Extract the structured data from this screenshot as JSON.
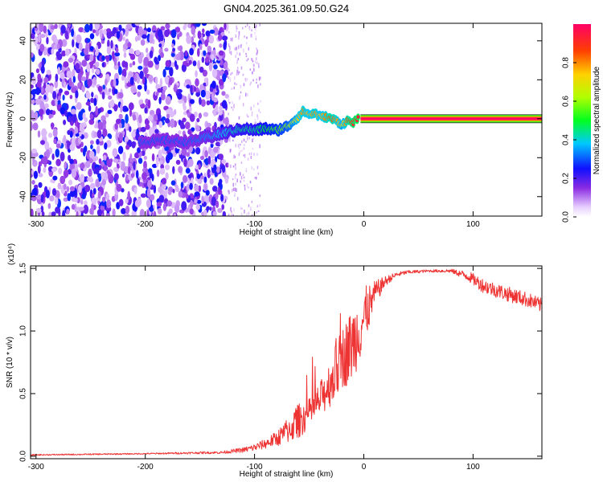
{
  "title": "GN04.2025.361.09.50.G24",
  "colorbar": {
    "label": "Normalized spectral amplitude",
    "range": [
      0,
      1
    ],
    "ticks": [
      0.0,
      0.2,
      0.4,
      0.6,
      0.8
    ],
    "tick_labels": [
      "0.0",
      "0.2",
      "0.4",
      "0.6",
      "0.8"
    ]
  },
  "chart_data": [
    {
      "type": "heatmap",
      "name": "spectrogram",
      "xlabel": "Height of straight line (km)",
      "ylabel": "Frequency (Hz)",
      "xlim": [
        -305,
        163
      ],
      "ylim": [
        -50,
        49
      ],
      "xticks": [
        -300,
        -200,
        -100,
        0,
        100
      ],
      "xtick_labels": [
        "-300",
        "-200",
        "-100",
        "0",
        "100"
      ],
      "yticks": [
        -40,
        -20,
        0,
        20,
        40
      ],
      "ytick_labels": [
        "-40",
        "-20",
        "0",
        "20",
        "40"
      ],
      "noise_region_x": [
        -305,
        -125
      ],
      "ridge": {
        "x": [
          -205,
          -180,
          -160,
          -140,
          -125,
          -110,
          -100,
          -90,
          -80,
          -70,
          -60,
          -55,
          -50,
          -45,
          -40,
          -35,
          -30,
          -25,
          -20,
          -15,
          -10,
          -5,
          0,
          10,
          50,
          100,
          163
        ],
        "y": [
          -12,
          -11,
          -12,
          -9,
          -7,
          -5,
          -6,
          -5,
          -6,
          -4,
          1,
          4,
          2,
          3,
          1,
          1,
          0,
          -1,
          -3,
          -1,
          -2,
          0,
          0,
          0,
          0,
          0,
          0
        ],
        "amplitude": [
          0.3,
          0.3,
          0.3,
          0.35,
          0.4,
          0.45,
          0.45,
          0.5,
          0.55,
          0.6,
          0.75,
          0.8,
          0.75,
          0.8,
          0.75,
          0.8,
          0.85,
          0.8,
          0.7,
          0.85,
          0.9,
          0.95,
          1.0,
          1.0,
          1.0,
          1.0,
          1.0
        ]
      }
    },
    {
      "type": "line",
      "name": "snr",
      "xlabel": "Height of straight line (km)",
      "ylabel": "SNR (10 * v/v)",
      "y_multiplier": "(x10⁴)",
      "xlim": [
        -305,
        163
      ],
      "ylim": [
        -0.02,
        1.52
      ],
      "xticks": [
        -300,
        -200,
        -100,
        0,
        100
      ],
      "xtick_labels": [
        "-300",
        "-200",
        "-100",
        "0",
        "100"
      ],
      "yticks": [
        0.0,
        0.5,
        1.0,
        1.5
      ],
      "ytick_labels": [
        "0.0",
        "0.5",
        "1.0",
        "1.5"
      ],
      "color": "#ee3333",
      "envelope": {
        "x": [
          -305,
          -200,
          -130,
          -110,
          -100,
          -90,
          -80,
          -70,
          -60,
          -50,
          -40,
          -30,
          -20,
          -10,
          0,
          10,
          20,
          30,
          40,
          60,
          80,
          95,
          110,
          130,
          150,
          163
        ],
        "mean": [
          0.01,
          0.02,
          0.03,
          0.05,
          0.07,
          0.1,
          0.14,
          0.2,
          0.28,
          0.34,
          0.45,
          0.6,
          0.78,
          0.9,
          1.1,
          1.3,
          1.4,
          1.45,
          1.47,
          1.48,
          1.48,
          1.44,
          1.36,
          1.3,
          1.25,
          1.2
        ],
        "noise": [
          0.005,
          0.005,
          0.01,
          0.02,
          0.03,
          0.04,
          0.06,
          0.1,
          0.14,
          0.12,
          0.14,
          0.2,
          0.25,
          0.3,
          0.25,
          0.1,
          0.04,
          0.02,
          0.015,
          0.01,
          0.015,
          0.04,
          0.06,
          0.06,
          0.06,
          0.06
        ]
      }
    }
  ]
}
